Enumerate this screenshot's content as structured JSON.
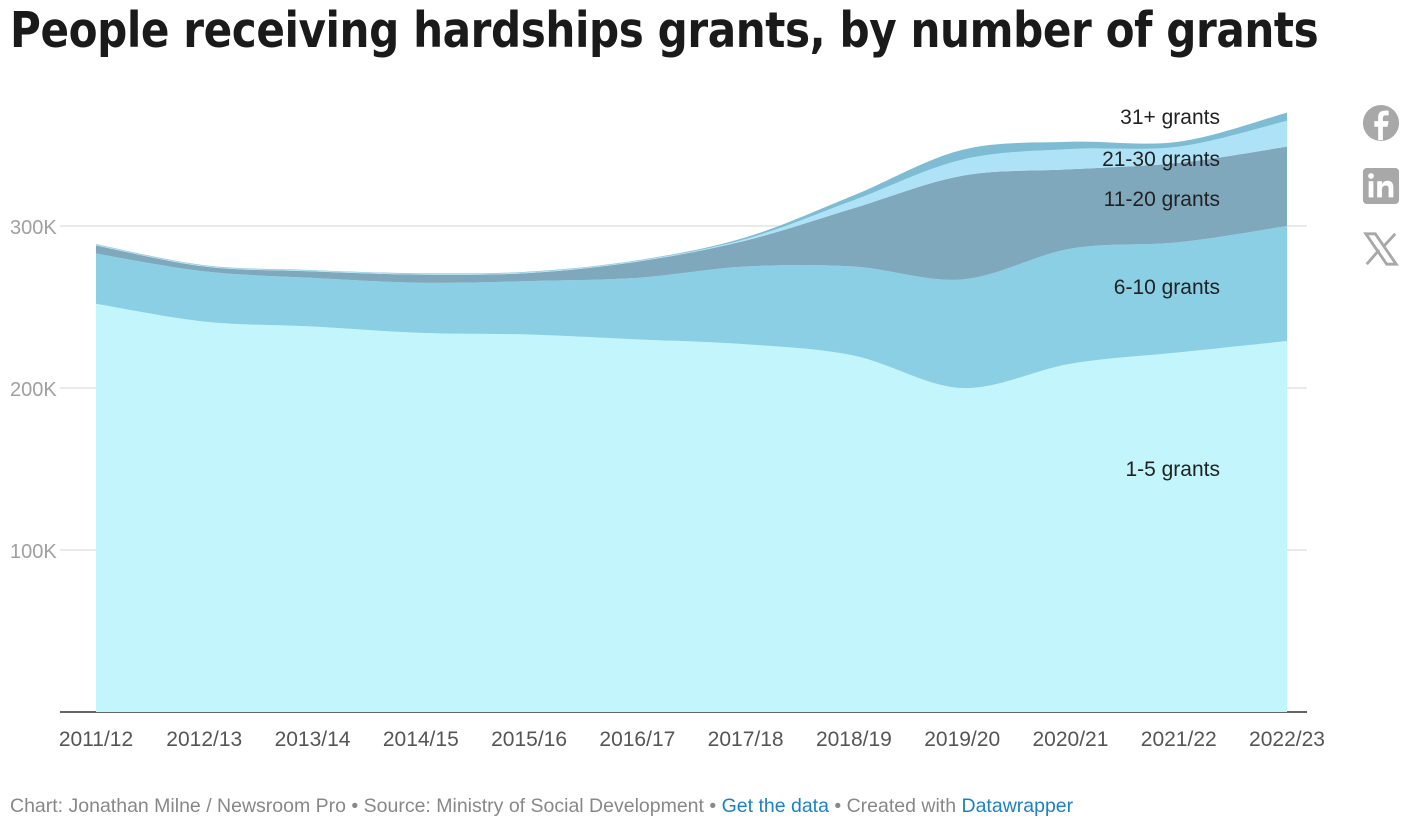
{
  "title": "People receiving hardships grants, by number of grants",
  "chart_data": {
    "type": "area",
    "stacked": true,
    "title": "People receiving hardships grants, by number of grants",
    "xlabel": "",
    "ylabel": "",
    "x": [
      "2011/12",
      "2012/13",
      "2013/14",
      "2014/15",
      "2015/16",
      "2016/17",
      "2017/18",
      "2018/19",
      "2019/20",
      "2020/21",
      "2021/22",
      "2022/23"
    ],
    "ylim": [
      0,
      380000
    ],
    "yticks": [
      {
        "value": 100000,
        "label": "100K"
      },
      {
        "value": 200000,
        "label": "200K"
      },
      {
        "value": 300000,
        "label": "300K"
      }
    ],
    "grid": true,
    "series": [
      {
        "name": "1-5 grants",
        "color": "#c2f6fc",
        "values": [
          252000,
          241000,
          238000,
          234000,
          233000,
          230000,
          227000,
          220000,
          200000,
          215000,
          222000,
          229000
        ]
      },
      {
        "name": "6-10 grants",
        "color": "#8acfe4",
        "values": [
          31000,
          31000,
          30000,
          31000,
          33000,
          38000,
          48000,
          55000,
          67000,
          71000,
          68000,
          71000
        ]
      },
      {
        "name": "11-20 grants",
        "color": "#7fa8bc",
        "values": [
          5000,
          3000,
          4000,
          5000,
          5000,
          10000,
          16000,
          36000,
          64000,
          49000,
          49000,
          49000
        ]
      },
      {
        "name": "21-30 grants",
        "color": "#aee3f7",
        "values": [
          500,
          500,
          500,
          500,
          500,
          500,
          1000,
          5000,
          10000,
          12500,
          10000,
          16000
        ]
      },
      {
        "name": "31+ grants",
        "color": "#7dbcd3",
        "values": [
          300,
          300,
          300,
          300,
          300,
          300,
          1000,
          3000,
          6000,
          4500,
          3000,
          5000
        ]
      }
    ]
  },
  "footer": {
    "credit": "Chart: Jonathan Milne / Newsroom Pro • Source: Ministry of Social Development • ",
    "get_data": "Get the data",
    "sep": " • Created with ",
    "datawrapper": "Datawrapper"
  },
  "social": [
    "facebook-icon",
    "linkedin-icon",
    "x-icon"
  ]
}
